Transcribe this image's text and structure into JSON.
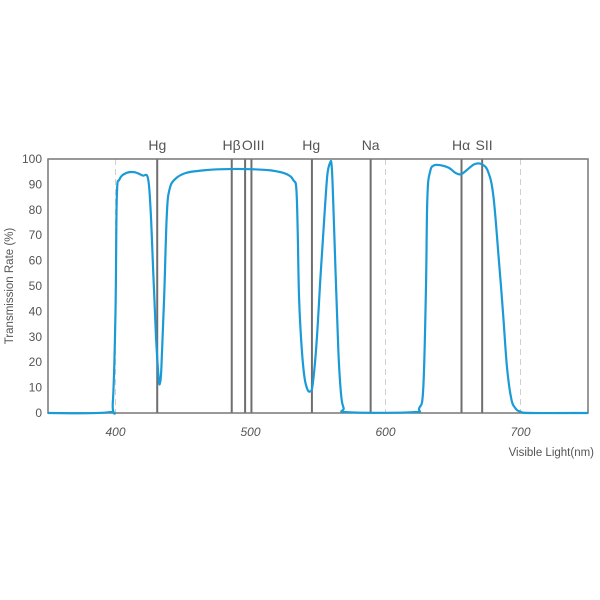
{
  "chart_data": {
    "type": "line",
    "xlabel": "Visible Light(nm)",
    "ylabel": "Transmission Rate (%)",
    "xlim": [
      350,
      750
    ],
    "ylim": [
      0,
      100
    ],
    "x_ticks": [
      400,
      500,
      600,
      700
    ],
    "y_ticks": [
      0,
      10,
      20,
      30,
      40,
      50,
      60,
      70,
      80,
      90,
      100
    ],
    "dashed_gridlines_x": [
      400,
      600,
      700
    ],
    "colors": {
      "curve": "#1a9ad6",
      "lines": "#6e6e6e",
      "dashed": "#cfcfcf",
      "frame": "#777777"
    },
    "emission_lines": [
      {
        "label": "Hg",
        "x": 430.9
      },
      {
        "label": "Hβ",
        "x": 486.1
      },
      {
        "label": "OIII",
        "x": 496
      },
      {
        "label": "OIII",
        "x": 500.7
      },
      {
        "label": "Hg",
        "x": 545.5
      },
      {
        "label": "Na",
        "x": 589
      },
      {
        "label": "Hα",
        "x": 656.3
      },
      {
        "label": "SII",
        "x": 671.6
      }
    ],
    "emission_line_label_anchors": [
      {
        "label": "Hg",
        "x": 431
      },
      {
        "label": "Hβ",
        "x": 486
      },
      {
        "label": "OIII",
        "x": 502
      },
      {
        "label": "Hg",
        "x": 545
      },
      {
        "label": "Na",
        "x": 589
      },
      {
        "label": "Hα",
        "x": 656
      },
      {
        "label": "SII",
        "x": 673
      }
    ],
    "series": [
      {
        "points": [
          [
            350,
            0
          ],
          [
            395,
            0.3
          ],
          [
            398,
            4
          ],
          [
            400,
            40
          ],
          [
            401,
            85
          ],
          [
            403,
            92
          ],
          [
            408,
            94.5
          ],
          [
            414,
            94.8
          ],
          [
            420,
            93.5
          ],
          [
            424,
            92.5
          ],
          [
            426,
            80
          ],
          [
            428,
            55
          ],
          [
            430,
            30
          ],
          [
            432,
            13.5
          ],
          [
            433,
            12
          ],
          [
            434,
            18
          ],
          [
            436,
            45
          ],
          [
            438,
            78
          ],
          [
            440,
            88
          ],
          [
            444,
            92
          ],
          [
            452,
            94.5
          ],
          [
            465,
            95.5
          ],
          [
            480,
            96
          ],
          [
            500,
            96
          ],
          [
            515,
            95.5
          ],
          [
            527,
            94
          ],
          [
            532,
            91.5
          ],
          [
            534,
            88
          ],
          [
            535,
            70
          ],
          [
            536,
            45
          ],
          [
            538,
            25
          ],
          [
            540,
            14
          ],
          [
            542,
            9.5
          ],
          [
            544,
            8.5
          ],
          [
            546,
            11
          ],
          [
            549,
            28
          ],
          [
            552,
            55
          ],
          [
            555,
            80
          ],
          [
            557,
            94
          ],
          [
            559,
            98.5
          ],
          [
            560,
            98
          ],
          [
            561,
            88
          ],
          [
            563,
            55
          ],
          [
            565,
            25
          ],
          [
            567,
            8
          ],
          [
            569,
            2
          ],
          [
            572,
            0.3
          ],
          [
            620,
            0.3
          ],
          [
            625,
            2
          ],
          [
            628,
            10
          ],
          [
            630,
            50
          ],
          [
            631,
            85
          ],
          [
            633,
            95
          ],
          [
            636,
            97.5
          ],
          [
            641,
            97.5
          ],
          [
            647,
            96.5
          ],
          [
            652,
            94.5
          ],
          [
            656,
            94
          ],
          [
            661,
            96
          ],
          [
            666,
            98
          ],
          [
            671,
            98
          ],
          [
            676,
            95
          ],
          [
            680,
            85
          ],
          [
            684,
            60
          ],
          [
            687,
            40
          ],
          [
            690,
            18
          ],
          [
            693,
            6
          ],
          [
            696,
            2
          ],
          [
            700,
            0.5
          ],
          [
            708,
            0
          ],
          [
            750,
            0
          ]
        ]
      }
    ]
  }
}
